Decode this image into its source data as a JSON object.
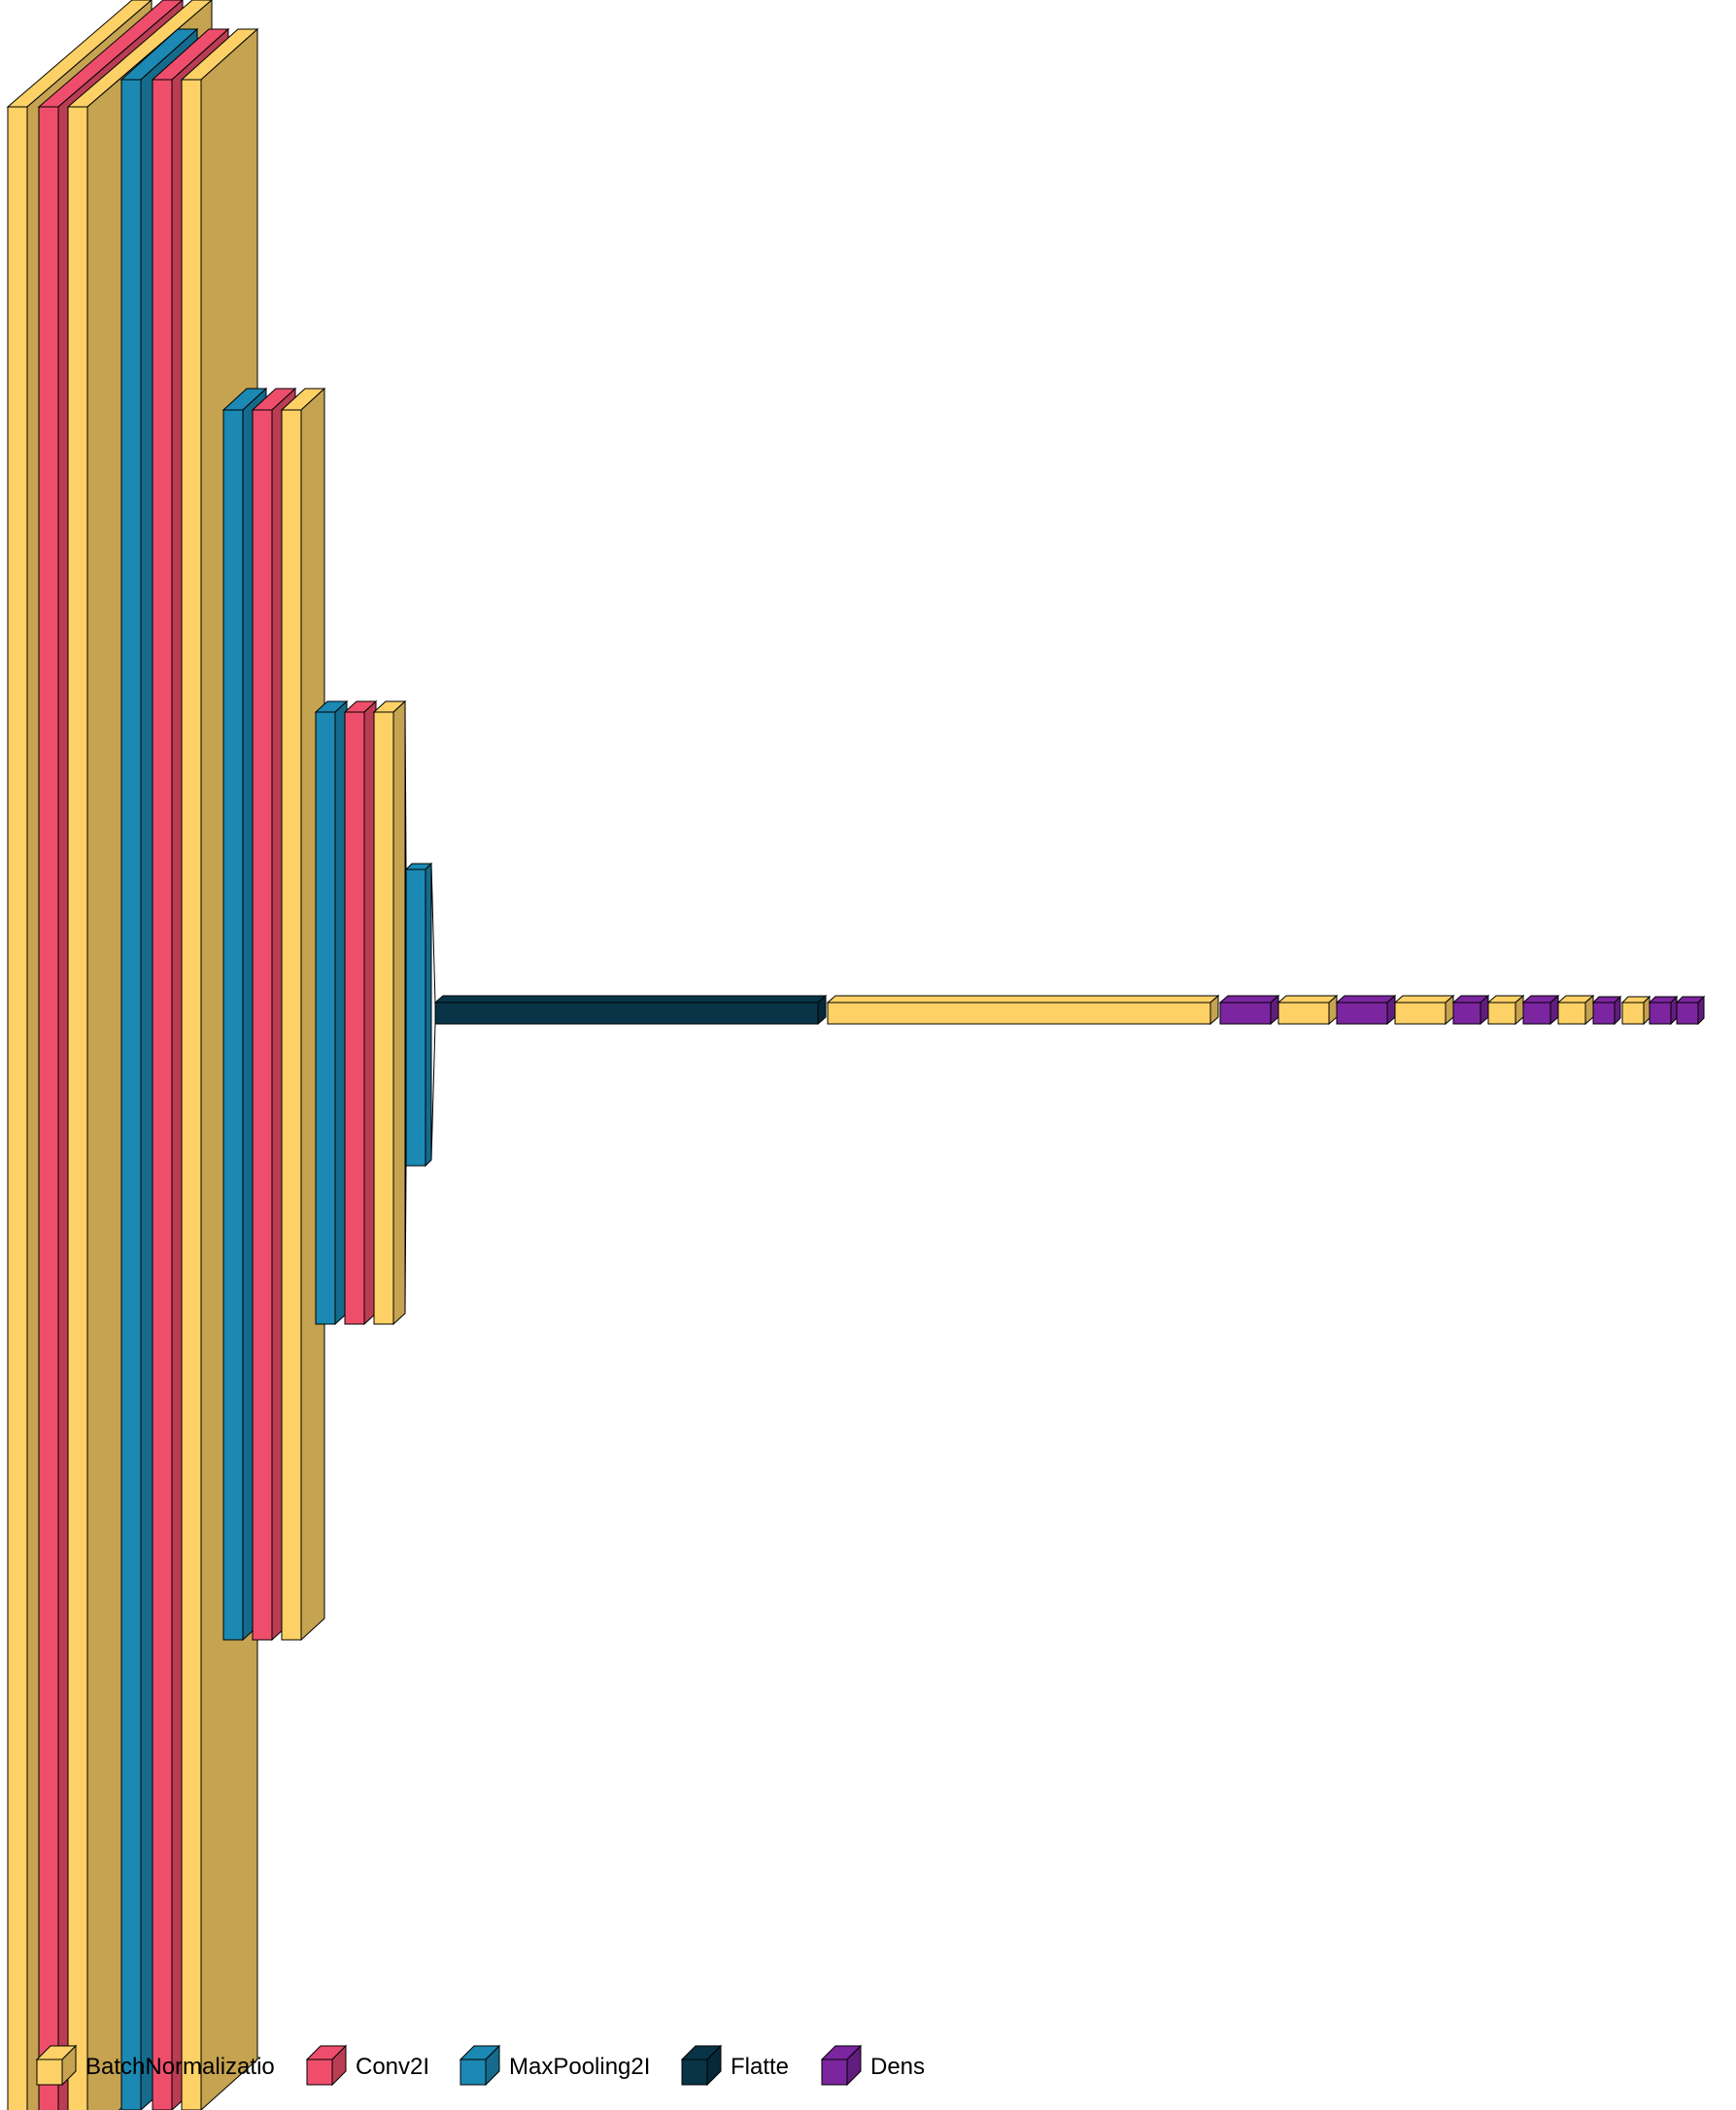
{
  "palette": {
    "BatchNormalization": "#FDD166",
    "Conv2D": "#EE4E6C",
    "MaxPooling2D": "#1B89B3",
    "Flatten": "#093447",
    "Dense": "#7C25A0"
  },
  "legend": [
    {
      "type": "BatchNormalization",
      "label": "BatchNormalizatio"
    },
    {
      "type": "Conv2D",
      "label": "Conv2I"
    },
    {
      "type": "MaxPooling2D",
      "label": "MaxPooling2I"
    },
    {
      "type": "Flatten",
      "label": "Flatte"
    },
    {
      "type": "Dense",
      "label": "Dens"
    }
  ],
  "layers": [
    {
      "type": "BatchNormalization"
    },
    {
      "type": "Conv2D"
    },
    {
      "type": "BatchNormalization"
    },
    {
      "type": "MaxPooling2D"
    },
    {
      "type": "Conv2D"
    },
    {
      "type": "BatchNormalization"
    },
    {
      "type": "MaxPooling2D"
    },
    {
      "type": "Conv2D"
    },
    {
      "type": "BatchNormalization"
    },
    {
      "type": "MaxPooling2D"
    },
    {
      "type": "Conv2D"
    },
    {
      "type": "BatchNormalization"
    },
    {
      "type": "MaxPooling2D"
    },
    {
      "type": "Flatten"
    },
    {
      "type": "BatchNormalization"
    },
    {
      "type": "Dense"
    },
    {
      "type": "BatchNormalization"
    },
    {
      "type": "Dense"
    },
    {
      "type": "BatchNormalization"
    },
    {
      "type": "Dense"
    },
    {
      "type": "BatchNormalization"
    },
    {
      "type": "Dense"
    },
    {
      "type": "BatchNormalization"
    },
    {
      "type": "Dense"
    },
    {
      "type": "BatchNormalization"
    },
    {
      "type": "Dense"
    },
    {
      "type": "Dense"
    }
  ]
}
